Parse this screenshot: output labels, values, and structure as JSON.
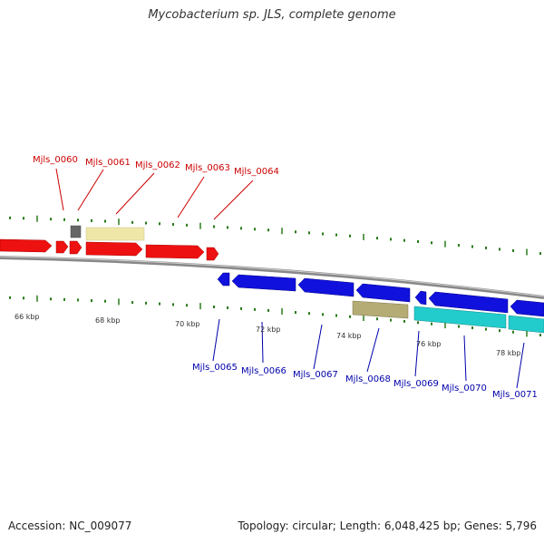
{
  "title": "Mycobacterium sp. JLS, complete genome",
  "footer": {
    "accession": "Accession: NC_009077",
    "stats": "Topology: circular; Length: 6,048,425 bp; Genes: 5,796"
  },
  "colors": {
    "forward_cds": "#ee1111",
    "reverse_cds": "#1111dd",
    "trna_light": "#eee7a8",
    "trna_dark": "#b4ac74",
    "gray_gene": "#666666",
    "cyan_gene": "#22cccc",
    "backbone": "#888888",
    "tick": "#2a7a1a",
    "forward_label": "#cc0000",
    "reverse_label": "#0000aa"
  },
  "scale": {
    "labels": [
      "66 kbp",
      "68 kbp",
      "70 kbp",
      "72 kbp",
      "74 kbp",
      "76 kbp",
      "78 kbp"
    ]
  },
  "forward_labels": [
    "Mjls_0060",
    "Mjls_0061",
    "Mjls_0062",
    "Mjls_0063",
    "Mjls_0064"
  ],
  "reverse_labels": [
    "Mjls_0065",
    "Mjls_0066",
    "Mjls_0067",
    "Mjls_0068",
    "Mjls_0069",
    "Mjls_0070",
    "Mjls_0071"
  ]
}
